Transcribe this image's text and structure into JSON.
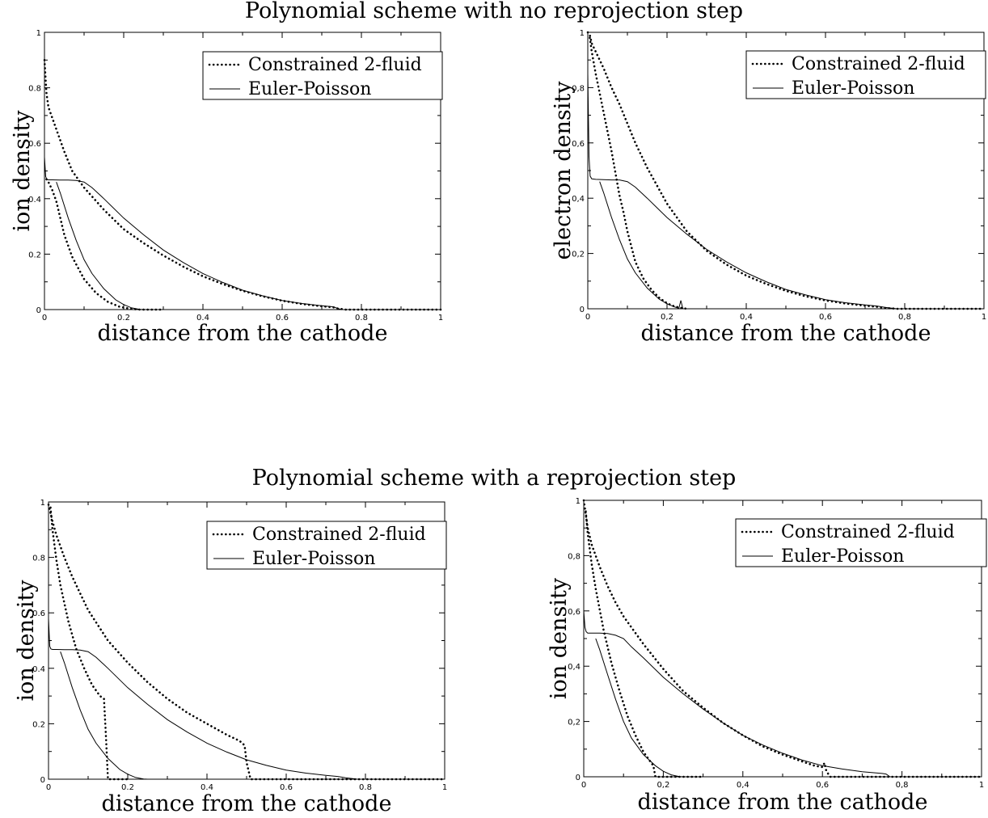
{
  "titles": {
    "top": "Polynomial scheme with no reprojection step",
    "bottom": "Polynomial scheme with a reprojection step"
  },
  "chart_data": [
    {
      "type": "line",
      "xlabel": "distance from the cathode",
      "ylabel": "ion density",
      "xlim": [
        0,
        1
      ],
      "ylim": [
        0,
        1
      ],
      "xticks": [
        "0",
        "0.2",
        "0.4",
        "0.6",
        "0.8",
        "1"
      ],
      "yticks": [
        "0",
        "0.2",
        "0.4",
        "0.6",
        "0.8",
        "1"
      ],
      "legend": "top-right",
      "series": [
        {
          "name": "Constrained 2-fluid",
          "style": "dotted",
          "x": [
            0.0,
            0.005,
            0.01,
            0.02,
            0.03,
            0.05,
            0.07,
            0.1,
            0.15,
            0.2,
            0.25,
            0.3,
            0.35,
            0.4,
            0.45,
            0.5,
            0.55,
            0.6,
            0.65,
            0.7,
            0.73,
            0.74,
            0.76,
            0.8,
            0.9,
            1.0
          ],
          "y": [
            0.9,
            0.78,
            0.73,
            0.69,
            0.65,
            0.57,
            0.5,
            0.44,
            0.36,
            0.29,
            0.24,
            0.195,
            0.155,
            0.12,
            0.092,
            0.068,
            0.048,
            0.032,
            0.02,
            0.012,
            0.008,
            0.004,
            0.0,
            0.0,
            0.0,
            0.0
          ]
        },
        {
          "name": "Constrained 2-fluid",
          "style": "dotted",
          "x": [
            0.005,
            0.01,
            0.02,
            0.03,
            0.04,
            0.05,
            0.07,
            0.1,
            0.13,
            0.16,
            0.19,
            0.22,
            0.24,
            0.3
          ],
          "y": [
            0.47,
            0.46,
            0.43,
            0.39,
            0.33,
            0.27,
            0.19,
            0.11,
            0.06,
            0.028,
            0.01,
            0.002,
            0.0,
            0.0
          ]
        },
        {
          "name": "Euler-Poisson",
          "style": "solid",
          "x": [
            0.0,
            0.003,
            0.006,
            0.01,
            0.02,
            0.04,
            0.06,
            0.08,
            0.1,
            0.12,
            0.15,
            0.2,
            0.25,
            0.3,
            0.35,
            0.4,
            0.45,
            0.5,
            0.55,
            0.6,
            0.65,
            0.7,
            0.73,
            0.74,
            0.75,
            0.8,
            1.0
          ],
          "y": [
            0.55,
            0.48,
            0.47,
            0.468,
            0.468,
            0.467,
            0.467,
            0.466,
            0.46,
            0.44,
            0.4,
            0.33,
            0.27,
            0.215,
            0.17,
            0.13,
            0.098,
            0.07,
            0.05,
            0.033,
            0.022,
            0.014,
            0.01,
            0.004,
            0.0,
            0.0,
            0.0
          ]
        },
        {
          "name": "Euler-Poisson",
          "style": "solid",
          "x": [
            0.03,
            0.04,
            0.06,
            0.08,
            0.1,
            0.12,
            0.15,
            0.18,
            0.2,
            0.22,
            0.24,
            0.25
          ],
          "y": [
            0.46,
            0.42,
            0.33,
            0.25,
            0.18,
            0.13,
            0.075,
            0.035,
            0.018,
            0.006,
            0.001,
            0.0
          ]
        }
      ]
    },
    {
      "type": "line",
      "xlabel": "distance from the cathode",
      "ylabel": "electron density",
      "xlim": [
        0,
        1
      ],
      "ylim": [
        0,
        1
      ],
      "xticks": [
        "0",
        "0,2",
        "0,4",
        "0,6",
        "0,8",
        "1"
      ],
      "yticks": [
        "0",
        "0,2",
        "0,4",
        "0,6",
        "0,8",
        "1"
      ],
      "legend": "top-right",
      "series": [
        {
          "name": "Constrained 2-fluid",
          "style": "dotted",
          "x": [
            0.0,
            0.005,
            0.01,
            0.02,
            0.04,
            0.06,
            0.08,
            0.1,
            0.12,
            0.15,
            0.2,
            0.25,
            0.3,
            0.35,
            0.4,
            0.45,
            0.5,
            0.55,
            0.6,
            0.65,
            0.7,
            0.73,
            0.75,
            0.78,
            0.8,
            1.0
          ],
          "y": [
            1.0,
            0.99,
            0.96,
            0.93,
            0.87,
            0.8,
            0.74,
            0.67,
            0.6,
            0.51,
            0.38,
            0.28,
            0.21,
            0.16,
            0.12,
            0.09,
            0.065,
            0.045,
            0.03,
            0.019,
            0.011,
            0.007,
            0.003,
            0.0,
            0.0,
            0.0
          ]
        },
        {
          "name": "Constrained 2-fluid",
          "style": "dotted",
          "x": [
            0.005,
            0.01,
            0.02,
            0.03,
            0.04,
            0.05,
            0.06,
            0.07,
            0.08,
            0.09,
            0.1,
            0.12,
            0.14,
            0.16,
            0.18,
            0.2,
            0.22,
            0.24,
            0.25
          ],
          "y": [
            0.98,
            0.93,
            0.85,
            0.78,
            0.71,
            0.64,
            0.57,
            0.49,
            0.41,
            0.35,
            0.28,
            0.17,
            0.11,
            0.07,
            0.04,
            0.02,
            0.008,
            0.002,
            0.0
          ]
        },
        {
          "name": "Euler-Poisson",
          "style": "solid",
          "x": [
            0.0,
            0.003,
            0.006,
            0.01,
            0.02,
            0.04,
            0.06,
            0.08,
            0.1,
            0.12,
            0.15,
            0.2,
            0.25,
            0.3,
            0.35,
            0.4,
            0.45,
            0.5,
            0.55,
            0.6,
            0.65,
            0.7,
            0.73,
            0.75,
            0.78,
            0.8,
            1.0
          ],
          "y": [
            0.85,
            0.55,
            0.48,
            0.47,
            0.468,
            0.467,
            0.466,
            0.466,
            0.46,
            0.44,
            0.4,
            0.33,
            0.27,
            0.215,
            0.17,
            0.13,
            0.098,
            0.07,
            0.05,
            0.033,
            0.022,
            0.014,
            0.01,
            0.005,
            0.0,
            0.0,
            0.0
          ]
        },
        {
          "name": "Euler-Poisson",
          "style": "solid",
          "x": [
            0.03,
            0.04,
            0.06,
            0.08,
            0.1,
            0.12,
            0.15,
            0.18,
            0.2,
            0.22,
            0.23,
            0.235,
            0.24,
            0.25
          ],
          "y": [
            0.46,
            0.42,
            0.33,
            0.25,
            0.18,
            0.13,
            0.075,
            0.035,
            0.018,
            0.006,
            0.002,
            0.03,
            0.0,
            0.0
          ]
        }
      ]
    },
    {
      "type": "line",
      "xlabel": "distance from the cathode",
      "ylabel": "ion density",
      "xlim": [
        0,
        1
      ],
      "ylim": [
        0,
        1
      ],
      "xticks": [
        "0",
        "0.2",
        "0.4",
        "0.6",
        "0.8",
        "1"
      ],
      "yticks": [
        "0",
        "0.2",
        "0.4",
        "0.6",
        "0.8",
        "1"
      ],
      "legend": "top-right",
      "series": [
        {
          "name": "Constrained 2-fluid",
          "style": "dotted",
          "x": [
            0.0,
            0.005,
            0.01,
            0.02,
            0.04,
            0.06,
            0.08,
            0.1,
            0.15,
            0.2,
            0.25,
            0.3,
            0.35,
            0.4,
            0.45,
            0.48,
            0.49,
            0.495,
            0.5,
            0.51,
            0.6,
            0.8,
            1.0
          ],
          "y": [
            0.99,
            0.96,
            0.93,
            0.88,
            0.8,
            0.73,
            0.67,
            0.61,
            0.5,
            0.42,
            0.35,
            0.29,
            0.24,
            0.2,
            0.16,
            0.14,
            0.13,
            0.12,
            0.06,
            0.0,
            0.0,
            0.0,
            0.0
          ]
        },
        {
          "name": "Constrained 2-fluid",
          "style": "dotted",
          "x": [
            0.005,
            0.01,
            0.02,
            0.03,
            0.05,
            0.07,
            0.09,
            0.11,
            0.13,
            0.14,
            0.145,
            0.15,
            0.16,
            0.2
          ],
          "y": [
            0.98,
            0.9,
            0.79,
            0.7,
            0.57,
            0.47,
            0.4,
            0.34,
            0.3,
            0.29,
            0.15,
            0.0,
            0.0,
            0.0
          ]
        },
        {
          "name": "Euler-Poisson",
          "style": "solid",
          "x": [
            0.0,
            0.003,
            0.006,
            0.01,
            0.02,
            0.04,
            0.06,
            0.08,
            0.1,
            0.12,
            0.15,
            0.2,
            0.25,
            0.3,
            0.35,
            0.4,
            0.45,
            0.5,
            0.55,
            0.6,
            0.65,
            0.7,
            0.73,
            0.75,
            0.78,
            0.8,
            1.0
          ],
          "y": [
            0.58,
            0.48,
            0.47,
            0.468,
            0.468,
            0.467,
            0.467,
            0.466,
            0.46,
            0.44,
            0.4,
            0.33,
            0.27,
            0.215,
            0.17,
            0.13,
            0.098,
            0.07,
            0.05,
            0.033,
            0.022,
            0.014,
            0.01,
            0.005,
            0.0,
            0.0,
            0.0
          ]
        },
        {
          "name": "Euler-Poisson",
          "style": "solid",
          "x": [
            0.03,
            0.04,
            0.06,
            0.08,
            0.1,
            0.12,
            0.15,
            0.18,
            0.2,
            0.22,
            0.24,
            0.25
          ],
          "y": [
            0.46,
            0.42,
            0.33,
            0.25,
            0.18,
            0.13,
            0.075,
            0.035,
            0.018,
            0.006,
            0.001,
            0.0
          ]
        }
      ]
    },
    {
      "type": "line",
      "xlabel": "distance from the cathode",
      "ylabel": "ion density",
      "xlim": [
        0,
        1
      ],
      "ylim": [
        0,
        1
      ],
      "xticks": [
        "0",
        "0,2",
        "0,4",
        "0,6",
        "0,8",
        "1"
      ],
      "yticks": [
        "0",
        "0,2",
        "0,4",
        "0,6",
        "0,8",
        "1"
      ],
      "legend": "top-right",
      "series": [
        {
          "name": "Constrained 2-fluid",
          "style": "dotted",
          "x": [
            0.0,
            0.005,
            0.01,
            0.02,
            0.04,
            0.06,
            0.08,
            0.1,
            0.15,
            0.2,
            0.25,
            0.3,
            0.35,
            0.4,
            0.45,
            0.5,
            0.55,
            0.58,
            0.6,
            0.605,
            0.61,
            0.62,
            0.7,
            1.0
          ],
          "y": [
            1.0,
            0.95,
            0.9,
            0.84,
            0.76,
            0.69,
            0.63,
            0.58,
            0.48,
            0.39,
            0.31,
            0.25,
            0.195,
            0.15,
            0.11,
            0.08,
            0.055,
            0.04,
            0.035,
            0.05,
            0.02,
            0.0,
            0.0,
            0.0
          ]
        },
        {
          "name": "Constrained 2-fluid",
          "style": "dotted",
          "x": [
            0.005,
            0.01,
            0.02,
            0.03,
            0.05,
            0.07,
            0.09,
            0.11,
            0.13,
            0.15,
            0.16,
            0.17,
            0.175,
            0.18,
            0.2,
            0.3
          ],
          "y": [
            0.96,
            0.88,
            0.77,
            0.68,
            0.53,
            0.41,
            0.31,
            0.22,
            0.15,
            0.09,
            0.07,
            0.05,
            0.04,
            0.0,
            0.0,
            0.0
          ]
        },
        {
          "name": "Euler-Poisson",
          "style": "solid",
          "x": [
            0.0,
            0.003,
            0.006,
            0.01,
            0.02,
            0.04,
            0.06,
            0.08,
            0.1,
            0.12,
            0.15,
            0.2,
            0.25,
            0.3,
            0.35,
            0.4,
            0.45,
            0.5,
            0.55,
            0.6,
            0.65,
            0.7,
            0.75,
            0.76,
            0.77,
            0.8,
            1.0
          ],
          "y": [
            0.6,
            0.54,
            0.525,
            0.52,
            0.52,
            0.52,
            0.518,
            0.512,
            0.5,
            0.47,
            0.43,
            0.36,
            0.3,
            0.245,
            0.195,
            0.15,
            0.115,
            0.085,
            0.06,
            0.04,
            0.028,
            0.018,
            0.012,
            0.01,
            0.0,
            0.0,
            0.0
          ]
        },
        {
          "name": "Euler-Poisson",
          "style": "solid",
          "x": [
            0.03,
            0.04,
            0.06,
            0.08,
            0.1,
            0.12,
            0.15,
            0.18,
            0.2,
            0.22,
            0.24,
            0.25
          ],
          "y": [
            0.5,
            0.46,
            0.37,
            0.28,
            0.2,
            0.14,
            0.08,
            0.04,
            0.02,
            0.007,
            0.001,
            0.0
          ]
        }
      ]
    }
  ]
}
